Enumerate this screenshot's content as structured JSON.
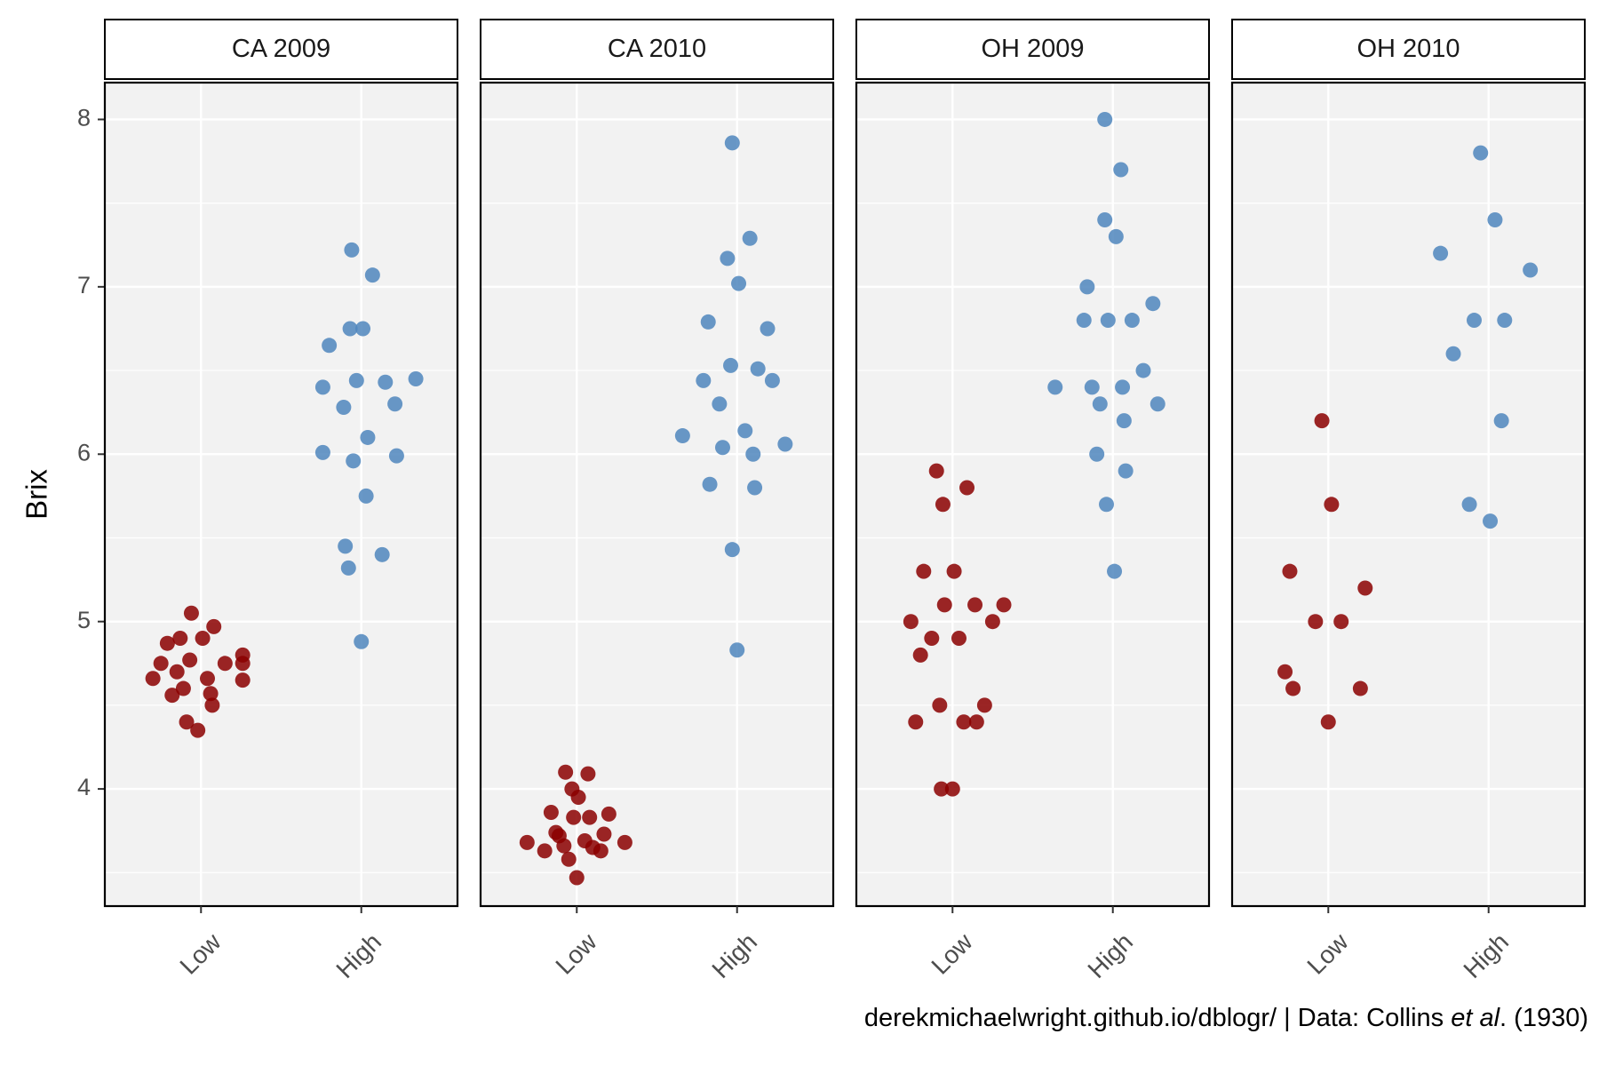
{
  "chart_data": {
    "type": "scatter",
    "ylabel": "Brix",
    "xlabel": "",
    "ylim": [
      3.3,
      8.22
    ],
    "y_ticks": [
      "4",
      "5",
      "6",
      "7",
      "8"
    ],
    "categories": [
      "Low",
      "High"
    ],
    "grid": true,
    "legend": "none",
    "colors": {
      "Low": "#8B0000",
      "High": "#4F86BD"
    },
    "panels": [
      {
        "label": "CA 2009",
        "series": [
          {
            "category": "Low",
            "points": [
              {
                "x": 0.7,
                "y": 4.66
              },
              {
                "x": 0.75,
                "y": 4.75
              },
              {
                "x": 0.79,
                "y": 4.87
              },
              {
                "x": 0.82,
                "y": 4.56
              },
              {
                "x": 0.85,
                "y": 4.7
              },
              {
                "x": 0.87,
                "y": 4.9
              },
              {
                "x": 0.89,
                "y": 4.6
              },
              {
                "x": 0.91,
                "y": 4.4
              },
              {
                "x": 0.93,
                "y": 4.77
              },
              {
                "x": 0.94,
                "y": 5.05
              },
              {
                "x": 0.98,
                "y": 4.35
              },
              {
                "x": 1.01,
                "y": 4.9
              },
              {
                "x": 1.04,
                "y": 4.66
              },
              {
                "x": 1.06,
                "y": 4.57
              },
              {
                "x": 1.07,
                "y": 4.5
              },
              {
                "x": 1.08,
                "y": 4.97
              },
              {
                "x": 1.15,
                "y": 4.75
              },
              {
                "x": 1.26,
                "y": 4.75
              },
              {
                "x": 1.26,
                "y": 4.8
              },
              {
                "x": 1.26,
                "y": 4.65
              }
            ]
          },
          {
            "category": "High",
            "points": [
              {
                "x": 1.76,
                "y": 6.4
              },
              {
                "x": 1.76,
                "y": 6.01
              },
              {
                "x": 1.8,
                "y": 6.65
              },
              {
                "x": 1.89,
                "y": 6.28
              },
              {
                "x": 1.9,
                "y": 5.45
              },
              {
                "x": 1.92,
                "y": 5.32
              },
              {
                "x": 1.93,
                "y": 6.75
              },
              {
                "x": 1.94,
                "y": 7.22
              },
              {
                "x": 1.95,
                "y": 5.96
              },
              {
                "x": 1.97,
                "y": 6.44
              },
              {
                "x": 2.0,
                "y": 4.88
              },
              {
                "x": 2.01,
                "y": 6.75
              },
              {
                "x": 2.03,
                "y": 5.75
              },
              {
                "x": 2.04,
                "y": 6.1
              },
              {
                "x": 2.07,
                "y": 7.07
              },
              {
                "x": 2.13,
                "y": 5.4
              },
              {
                "x": 2.15,
                "y": 6.43
              },
              {
                "x": 2.21,
                "y": 6.3
              },
              {
                "x": 2.22,
                "y": 5.99
              },
              {
                "x": 2.34,
                "y": 6.45
              }
            ]
          }
        ]
      },
      {
        "label": "CA 2010",
        "series": [
          {
            "category": "Low",
            "points": [
              {
                "x": 0.69,
                "y": 3.68
              },
              {
                "x": 0.8,
                "y": 3.63
              },
              {
                "x": 0.84,
                "y": 3.86
              },
              {
                "x": 0.87,
                "y": 3.74
              },
              {
                "x": 0.89,
                "y": 3.72
              },
              {
                "x": 0.92,
                "y": 3.66
              },
              {
                "x": 0.93,
                "y": 4.1
              },
              {
                "x": 0.95,
                "y": 3.58
              },
              {
                "x": 0.97,
                "y": 4.0
              },
              {
                "x": 0.98,
                "y": 3.83
              },
              {
                "x": 1.0,
                "y": 3.47
              },
              {
                "x": 1.01,
                "y": 3.95
              },
              {
                "x": 1.05,
                "y": 3.69
              },
              {
                "x": 1.07,
                "y": 4.09
              },
              {
                "x": 1.08,
                "y": 3.83
              },
              {
                "x": 1.1,
                "y": 3.65
              },
              {
                "x": 1.15,
                "y": 3.63
              },
              {
                "x": 1.17,
                "y": 3.73
              },
              {
                "x": 1.2,
                "y": 3.85
              },
              {
                "x": 1.3,
                "y": 3.68
              }
            ]
          },
          {
            "category": "High",
            "points": [
              {
                "x": 1.66,
                "y": 6.11
              },
              {
                "x": 1.79,
                "y": 6.44
              },
              {
                "x": 1.82,
                "y": 6.79
              },
              {
                "x": 1.83,
                "y": 5.82
              },
              {
                "x": 1.89,
                "y": 6.3
              },
              {
                "x": 1.91,
                "y": 6.04
              },
              {
                "x": 1.94,
                "y": 7.17
              },
              {
                "x": 1.96,
                "y": 6.53
              },
              {
                "x": 1.97,
                "y": 5.43
              },
              {
                "x": 1.97,
                "y": 7.86
              },
              {
                "x": 2.0,
                "y": 4.83
              },
              {
                "x": 2.01,
                "y": 7.02
              },
              {
                "x": 2.05,
                "y": 6.14
              },
              {
                "x": 2.08,
                "y": 7.29
              },
              {
                "x": 2.1,
                "y": 6.0
              },
              {
                "x": 2.11,
                "y": 5.8
              },
              {
                "x": 2.13,
                "y": 6.51
              },
              {
                "x": 2.19,
                "y": 6.75
              },
              {
                "x": 2.22,
                "y": 6.44
              },
              {
                "x": 2.3,
                "y": 6.06
              }
            ]
          }
        ]
      },
      {
        "label": "OH 2009",
        "series": [
          {
            "category": "Low",
            "points": [
              {
                "x": 0.74,
                "y": 5.0
              },
              {
                "x": 0.77,
                "y": 4.4
              },
              {
                "x": 0.8,
                "y": 4.8
              },
              {
                "x": 0.82,
                "y": 5.3
              },
              {
                "x": 0.87,
                "y": 4.9
              },
              {
                "x": 0.9,
                "y": 5.9
              },
              {
                "x": 0.92,
                "y": 4.5
              },
              {
                "x": 0.93,
                "y": 4.0
              },
              {
                "x": 0.94,
                "y": 5.7
              },
              {
                "x": 0.95,
                "y": 5.1
              },
              {
                "x": 1.0,
                "y": 4.0
              },
              {
                "x": 1.01,
                "y": 5.3
              },
              {
                "x": 1.04,
                "y": 4.9
              },
              {
                "x": 1.07,
                "y": 4.4
              },
              {
                "x": 1.09,
                "y": 5.8
              },
              {
                "x": 1.14,
                "y": 5.1
              },
              {
                "x": 1.15,
                "y": 4.4
              },
              {
                "x": 1.2,
                "y": 4.5
              },
              {
                "x": 1.25,
                "y": 5.0
              },
              {
                "x": 1.32,
                "y": 5.1
              }
            ]
          },
          {
            "category": "High",
            "points": [
              {
                "x": 1.64,
                "y": 6.4
              },
              {
                "x": 1.82,
                "y": 6.8
              },
              {
                "x": 1.84,
                "y": 7.0
              },
              {
                "x": 1.87,
                "y": 6.4
              },
              {
                "x": 1.9,
                "y": 6.0
              },
              {
                "x": 1.92,
                "y": 6.3
              },
              {
                "x": 1.95,
                "y": 7.4
              },
              {
                "x": 1.95,
                "y": 8.0
              },
              {
                "x": 1.96,
                "y": 5.7
              },
              {
                "x": 1.97,
                "y": 6.8
              },
              {
                "x": 2.01,
                "y": 5.3
              },
              {
                "x": 2.02,
                "y": 7.3
              },
              {
                "x": 2.05,
                "y": 7.7
              },
              {
                "x": 2.06,
                "y": 6.4
              },
              {
                "x": 2.07,
                "y": 6.2
              },
              {
                "x": 2.08,
                "y": 5.9
              },
              {
                "x": 2.12,
                "y": 6.8
              },
              {
                "x": 2.19,
                "y": 6.5
              },
              {
                "x": 2.25,
                "y": 6.9
              },
              {
                "x": 2.28,
                "y": 6.3
              }
            ]
          }
        ]
      },
      {
        "label": "OH 2010",
        "series": [
          {
            "category": "Low",
            "points": [
              {
                "x": 0.73,
                "y": 4.7
              },
              {
                "x": 0.76,
                "y": 5.3
              },
              {
                "x": 0.78,
                "y": 4.6
              },
              {
                "x": 0.92,
                "y": 5.0
              },
              {
                "x": 0.96,
                "y": 6.2
              },
              {
                "x": 1.0,
                "y": 4.4
              },
              {
                "x": 1.02,
                "y": 5.7
              },
              {
                "x": 1.08,
                "y": 5.0
              },
              {
                "x": 1.2,
                "y": 4.6
              },
              {
                "x": 1.23,
                "y": 5.2
              }
            ]
          },
          {
            "category": "High",
            "points": [
              {
                "x": 1.7,
                "y": 7.2
              },
              {
                "x": 1.78,
                "y": 6.6
              },
              {
                "x": 1.88,
                "y": 5.7
              },
              {
                "x": 1.91,
                "y": 6.8
              },
              {
                "x": 1.95,
                "y": 7.8
              },
              {
                "x": 2.01,
                "y": 5.6
              },
              {
                "x": 2.04,
                "y": 7.4
              },
              {
                "x": 2.08,
                "y": 6.2
              },
              {
                "x": 2.1,
                "y": 6.8
              },
              {
                "x": 2.26,
                "y": 7.1
              }
            ]
          }
        ]
      }
    ]
  },
  "caption": {
    "prefix": "derekmichaelwright.github.io/dblogr/ | Data: Collins ",
    "italic": "et al",
    "suffix": ". (1930)"
  }
}
